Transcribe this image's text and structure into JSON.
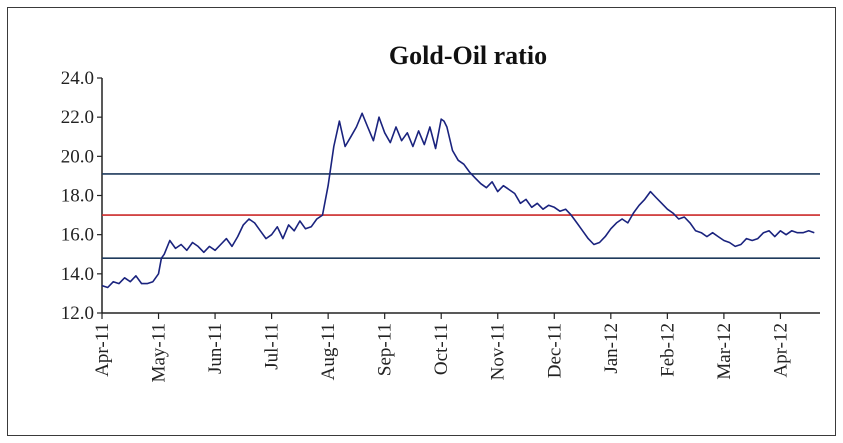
{
  "chart_data": {
    "type": "line",
    "title": "Gold-Oil ratio",
    "xlabel": "",
    "ylabel": "",
    "ylim": [
      12.0,
      24.0
    ],
    "yticks": [
      "12.0",
      "14.0",
      "16.0",
      "18.0",
      "20.0",
      "22.0",
      "24.0"
    ],
    "xticks": [
      "Apr-11",
      "May-11",
      "Jun-11",
      "Jul-11",
      "Aug-11",
      "Sep-11",
      "Oct-11",
      "Nov-11",
      "Dec-11",
      "Jan-12",
      "Feb-12",
      "Mar-12",
      "Apr-12"
    ],
    "xlim": [
      0,
      12.7
    ],
    "grid": false,
    "reference_lines": [
      {
        "y": 19.1,
        "color": "#1f3a5c"
      },
      {
        "y": 17.0,
        "color": "#cc2a2a"
      },
      {
        "y": 14.8,
        "color": "#1f3a5c"
      }
    ],
    "series": [
      {
        "color": "#1a237e",
        "x": [
          0.0,
          0.1,
          0.2,
          0.3,
          0.4,
          0.5,
          0.6,
          0.7,
          0.8,
          0.9,
          1.0,
          1.05,
          1.1,
          1.2,
          1.3,
          1.4,
          1.5,
          1.6,
          1.7,
          1.8,
          1.9,
          2.0,
          2.1,
          2.2,
          2.3,
          2.4,
          2.5,
          2.6,
          2.7,
          2.8,
          2.9,
          3.0,
          3.1,
          3.2,
          3.3,
          3.4,
          3.5,
          3.6,
          3.7,
          3.8,
          3.9,
          4.0,
          4.1,
          4.2,
          4.3,
          4.4,
          4.5,
          4.6,
          4.7,
          4.8,
          4.9,
          5.0,
          5.1,
          5.2,
          5.3,
          5.4,
          5.5,
          5.6,
          5.7,
          5.8,
          5.9,
          6.0,
          6.05,
          6.1,
          6.2,
          6.3,
          6.4,
          6.5,
          6.6,
          6.7,
          6.8,
          6.9,
          7.0,
          7.1,
          7.2,
          7.3,
          7.4,
          7.5,
          7.6,
          7.7,
          7.8,
          7.9,
          8.0,
          8.1,
          8.2,
          8.3,
          8.4,
          8.5,
          8.6,
          8.7,
          8.8,
          8.9,
          9.0,
          9.1,
          9.2,
          9.3,
          9.4,
          9.5,
          9.6,
          9.7,
          9.8,
          9.9,
          10.0,
          10.1,
          10.2,
          10.3,
          10.4,
          10.5,
          10.6,
          10.7,
          10.8,
          10.9,
          11.0,
          11.1,
          11.2,
          11.3,
          11.4,
          11.5,
          11.6,
          11.7,
          11.8,
          11.9,
          12.0,
          12.1,
          12.2,
          12.3,
          12.4,
          12.5,
          12.6
        ],
        "y": [
          13.4,
          13.3,
          13.6,
          13.5,
          13.8,
          13.6,
          13.9,
          13.5,
          13.5,
          13.6,
          14.0,
          14.8,
          15.0,
          15.7,
          15.3,
          15.5,
          15.2,
          15.6,
          15.4,
          15.1,
          15.4,
          15.2,
          15.5,
          15.8,
          15.4,
          15.9,
          16.5,
          16.8,
          16.6,
          16.2,
          15.8,
          16.0,
          16.4,
          15.8,
          16.5,
          16.2,
          16.7,
          16.3,
          16.4,
          16.8,
          17.0,
          18.5,
          20.5,
          21.8,
          20.5,
          21.0,
          21.5,
          22.2,
          21.5,
          20.8,
          22.0,
          21.2,
          20.7,
          21.5,
          20.8,
          21.2,
          20.5,
          21.3,
          20.6,
          21.5,
          20.4,
          21.9,
          21.8,
          21.5,
          20.3,
          19.8,
          19.6,
          19.2,
          18.9,
          18.6,
          18.4,
          18.7,
          18.2,
          18.5,
          18.3,
          18.1,
          17.6,
          17.8,
          17.4,
          17.6,
          17.3,
          17.5,
          17.4,
          17.2,
          17.3,
          17.0,
          16.6,
          16.2,
          15.8,
          15.5,
          15.6,
          15.9,
          16.3,
          16.6,
          16.8,
          16.6,
          17.1,
          17.5,
          17.8,
          18.2,
          17.9,
          17.6,
          17.3,
          17.1,
          16.8,
          16.9,
          16.6,
          16.2,
          16.1,
          15.9,
          16.1,
          15.9,
          15.7,
          15.6,
          15.4,
          15.5,
          15.8,
          15.7,
          15.8,
          16.1,
          16.2,
          15.9,
          16.2,
          16.0,
          16.2,
          16.1,
          16.1,
          16.2,
          16.1
        ]
      }
    ]
  }
}
